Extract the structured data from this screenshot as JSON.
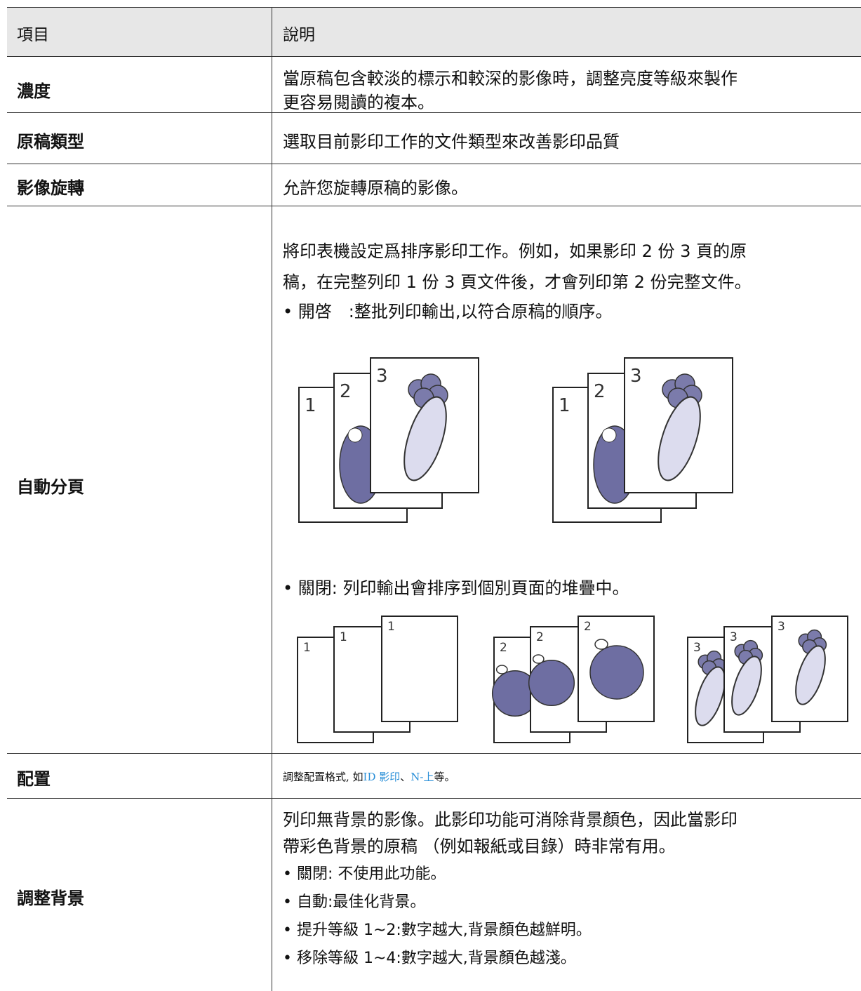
{
  "table": {
    "header": [
      "項目",
      "說明"
    ],
    "rows": [
      {
        "item": "濃度",
        "text": [
          "當原稿包含較淡的標示和較深的影像時，調整亮度等級來製作",
          "更容易閱讀的複本。"
        ]
      },
      {
        "item": "原稿類型",
        "text": [
          "選取目前影印工作的文件類型來改善影印品質"
        ]
      },
      {
        "item": "影像旋轉",
        "text": [
          "允許您旋轉原稿的影像。"
        ]
      },
      {
        "item": "自動分頁",
        "text": [
          "將印表機設定爲排序影印工作。例如，如果影印 2 份 3 頁的原",
          "稿，在完整列印 1 份 3 頁文件後，才會列印第 2 份完整文件。"
        ],
        "bullet_on": "• 開啓　:整批列印輸出,以符合原稿的順序。",
        "figures_on": [
          [
            "1",
            "2",
            "3"
          ],
          [
            "1",
            "2",
            "3"
          ]
        ],
        "bullet_off": "• 關閉:  列印輸出會排序到個別頁面的堆疊中。",
        "figures_off": [
          [
            "1",
            "1",
            "1"
          ],
          [
            "2",
            "2",
            "2"
          ],
          [
            "3",
            "3",
            "3"
          ]
        ]
      },
      {
        "item": "配置",
        "text": [
          "調整配置格式, 如",
          "ID 影印",
          "、",
          "N-上",
          "等。"
        ]
      },
      {
        "item": "調整背景",
        "text": [
          "列印無背景的影像。此影印功能可消除背景顏色，因此當影印",
          "帶彩色背景的原稿 （例如報紙或目錄）時非常有用。"
        ],
        "bullets": [
          "• 關閉: 不使用此功能。",
          "• 自動:最佳化背景。",
          "• 提升等級 1~2:數字越大,背景顏色越鮮明。",
          "• 移除等級 1~4:數字越大,背景顏色越淺。"
        ]
      }
    ]
  }
}
